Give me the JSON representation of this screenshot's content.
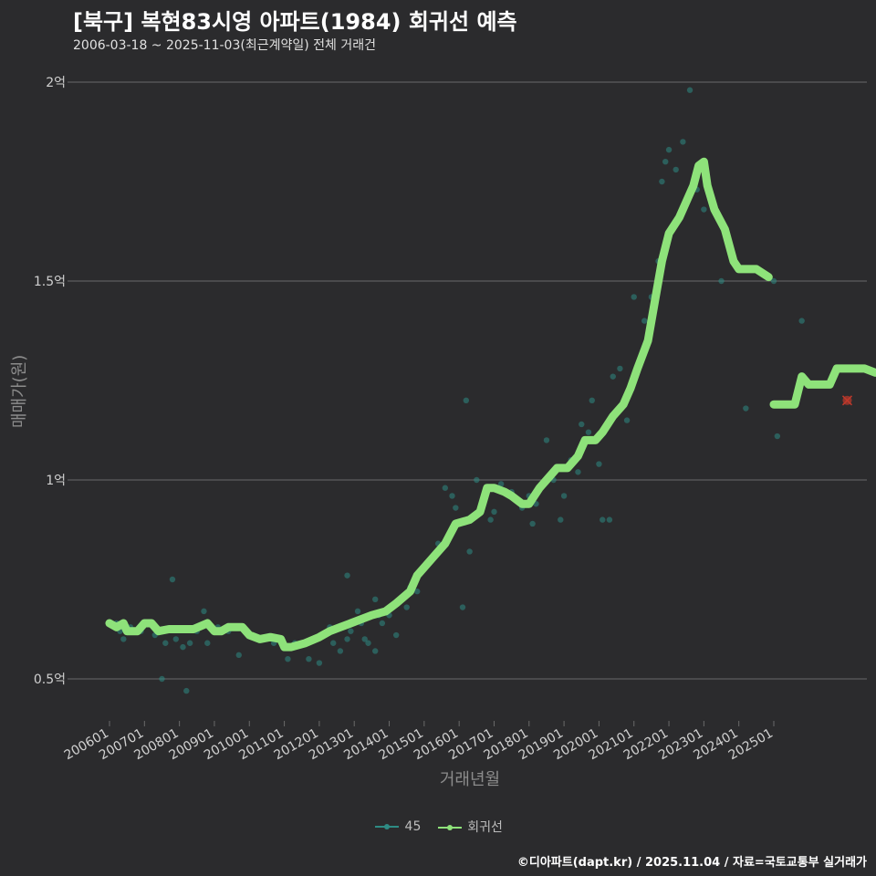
{
  "header": {
    "title": "[북구] 복현83시영 아파트(1984) 회귀선 예측",
    "subtitle": "2006-03-18 ~ 2025-11-03(최근계약일) 전체 거래건"
  },
  "footer": {
    "credit": "©디아파트(dapt.kr) / 2025.11.04 / 자료=국토교통부 실거래가"
  },
  "legend": {
    "items": [
      "45",
      "회귀선"
    ]
  },
  "colors": {
    "background": "#2b2b2d",
    "points": "#2e8b84",
    "regression": "#8ee27a",
    "highlight": "#c0392b",
    "grid": "#6a6a6a"
  },
  "chart_data": {
    "type": "scatter",
    "title": "[북구] 복현83시영 아파트(1984) 회귀선 예측",
    "xlabel": "거래년월",
    "ylabel": "매매가(원)",
    "ylim": [
      0.4,
      2.05
    ],
    "y_ticks": [
      0.5,
      1.0,
      1.5,
      2.0
    ],
    "y_tick_labels": [
      "0.5억",
      "1억",
      "1.5억",
      "2억"
    ],
    "x_range": [
      2005.7,
      2027.0
    ],
    "x_ticks": [
      2006,
      2007,
      2008,
      2009,
      2010,
      2011,
      2012,
      2013,
      2014,
      2015,
      2016,
      2017,
      2018,
      2019,
      2020,
      2021,
      2022,
      2023,
      2024,
      2025
    ],
    "x_tick_labels": [
      "200601",
      "200701",
      "200801",
      "200901",
      "201001",
      "201101",
      "201201",
      "201301",
      "201401",
      "201501",
      "201601",
      "201701",
      "201801",
      "201901",
      "202001",
      "202101",
      "202201",
      "202301",
      "202401",
      "202501"
    ],
    "series": [
      {
        "name": "45",
        "type": "scatter",
        "points": [
          [
            2006.2,
            0.64
          ],
          [
            2006.3,
            0.62
          ],
          [
            2006.4,
            0.6
          ],
          [
            2006.6,
            0.63
          ],
          [
            2006.9,
            0.62
          ],
          [
            2007.1,
            0.64
          ],
          [
            2007.3,
            0.61
          ],
          [
            2007.5,
            0.5
          ],
          [
            2007.6,
            0.59
          ],
          [
            2007.8,
            0.75
          ],
          [
            2007.9,
            0.6
          ],
          [
            2008.1,
            0.58
          ],
          [
            2008.2,
            0.47
          ],
          [
            2008.3,
            0.59
          ],
          [
            2008.5,
            0.62
          ],
          [
            2008.7,
            0.67
          ],
          [
            2008.8,
            0.59
          ],
          [
            2009.1,
            0.63
          ],
          [
            2009.4,
            0.62
          ],
          [
            2009.7,
            0.56
          ],
          [
            2010.0,
            0.61
          ],
          [
            2010.4,
            0.6
          ],
          [
            2010.7,
            0.59
          ],
          [
            2011.1,
            0.55
          ],
          [
            2011.3,
            0.59
          ],
          [
            2011.7,
            0.55
          ],
          [
            2012.0,
            0.54
          ],
          [
            2012.1,
            0.61
          ],
          [
            2012.3,
            0.63
          ],
          [
            2012.4,
            0.59
          ],
          [
            2012.6,
            0.57
          ],
          [
            2012.8,
            0.6
          ],
          [
            2012.9,
            0.62
          ],
          [
            2013.1,
            0.67
          ],
          [
            2013.2,
            0.64
          ],
          [
            2013.3,
            0.6
          ],
          [
            2013.4,
            0.59
          ],
          [
            2013.6,
            0.57
          ],
          [
            2013.6,
            0.7
          ],
          [
            2013.7,
            0.66
          ],
          [
            2013.8,
            0.64
          ],
          [
            2014.0,
            0.66
          ],
          [
            2014.2,
            0.61
          ],
          [
            2014.5,
            0.68
          ],
          [
            2014.6,
            0.73
          ],
          [
            2014.8,
            0.72
          ],
          [
            2015.0,
            0.78
          ],
          [
            2015.2,
            0.8
          ],
          [
            2015.4,
            0.84
          ],
          [
            2015.6,
            0.98
          ],
          [
            2015.8,
            0.96
          ],
          [
            2015.9,
            0.93
          ],
          [
            2016.1,
            0.68
          ],
          [
            2016.3,
            0.82
          ],
          [
            2016.5,
            1.0
          ],
          [
            2016.7,
            0.94
          ],
          [
            2016.9,
            0.9
          ],
          [
            2017.0,
            0.92
          ],
          [
            2017.2,
            0.99
          ],
          [
            2017.5,
            0.97
          ],
          [
            2017.8,
            0.93
          ],
          [
            2018.0,
            0.96
          ],
          [
            2018.1,
            0.89
          ],
          [
            2018.2,
            0.94
          ],
          [
            2018.5,
            1.1
          ],
          [
            2018.7,
            1.0
          ],
          [
            2018.9,
            0.9
          ],
          [
            2019.0,
            0.96
          ],
          [
            2019.2,
            1.05
          ],
          [
            2019.4,
            1.02
          ],
          [
            2019.5,
            1.14
          ],
          [
            2019.7,
            1.12
          ],
          [
            2019.8,
            1.2
          ],
          [
            2020.0,
            1.04
          ],
          [
            2020.1,
            0.9
          ],
          [
            2020.3,
            0.9
          ],
          [
            2020.4,
            1.26
          ],
          [
            2020.6,
            1.28
          ],
          [
            2020.8,
            1.15
          ],
          [
            2021.0,
            1.46
          ],
          [
            2021.3,
            1.4
          ],
          [
            2021.5,
            1.46
          ],
          [
            2021.7,
            1.55
          ],
          [
            2021.8,
            1.75
          ],
          [
            2021.9,
            1.8
          ],
          [
            2022.0,
            1.83
          ],
          [
            2022.2,
            1.78
          ],
          [
            2022.4,
            1.85
          ],
          [
            2022.6,
            1.98
          ],
          [
            2022.8,
            1.73
          ],
          [
            2023.0,
            1.68
          ],
          [
            2023.5,
            1.5
          ],
          [
            2024.2,
            1.18
          ],
          [
            2025.0,
            1.5
          ],
          [
            2025.1,
            1.11
          ],
          [
            2025.8,
            1.4
          ],
          [
            2016.2,
            1.2
          ],
          [
            2012.8,
            0.76
          ]
        ]
      },
      {
        "name": "회귀선",
        "type": "line",
        "segments": [
          [
            [
              2006.0,
              0.64
            ],
            [
              2006.2,
              0.63
            ],
            [
              2006.4,
              0.64
            ],
            [
              2006.5,
              0.62
            ],
            [
              2006.8,
              0.62
            ],
            [
              2007.0,
              0.64
            ],
            [
              2007.2,
              0.64
            ],
            [
              2007.4,
              0.62
            ],
            [
              2007.7,
              0.625
            ],
            [
              2008.0,
              0.625
            ],
            [
              2008.4,
              0.625
            ],
            [
              2008.8,
              0.64
            ],
            [
              2009.0,
              0.62
            ],
            [
              2009.2,
              0.62
            ],
            [
              2009.4,
              0.63
            ],
            [
              2009.8,
              0.63
            ],
            [
              2010.0,
              0.61
            ],
            [
              2010.3,
              0.6
            ],
            [
              2010.6,
              0.605
            ],
            [
              2010.9,
              0.6
            ],
            [
              2011.0,
              0.58
            ],
            [
              2011.2,
              0.58
            ],
            [
              2011.6,
              0.59
            ],
            [
              2012.0,
              0.605
            ],
            [
              2012.3,
              0.62
            ],
            [
              2012.6,
              0.63
            ],
            [
              2012.9,
              0.64
            ],
            [
              2013.2,
              0.65
            ],
            [
              2013.5,
              0.66
            ],
            [
              2013.9,
              0.67
            ],
            [
              2014.2,
              0.69
            ],
            [
              2014.6,
              0.72
            ],
            [
              2014.8,
              0.76
            ],
            [
              2015.0,
              0.78
            ],
            [
              2015.3,
              0.81
            ],
            [
              2015.6,
              0.84
            ],
            [
              2015.9,
              0.89
            ],
            [
              2016.3,
              0.9
            ],
            [
              2016.6,
              0.92
            ],
            [
              2016.8,
              0.98
            ],
            [
              2017.0,
              0.98
            ],
            [
              2017.3,
              0.97
            ],
            [
              2017.5,
              0.96
            ],
            [
              2017.8,
              0.94
            ],
            [
              2018.0,
              0.94
            ],
            [
              2018.3,
              0.98
            ],
            [
              2018.6,
              1.01
            ],
            [
              2018.8,
              1.03
            ],
            [
              2019.1,
              1.03
            ],
            [
              2019.4,
              1.06
            ],
            [
              2019.6,
              1.1
            ],
            [
              2019.9,
              1.1
            ],
            [
              2020.1,
              1.12
            ],
            [
              2020.4,
              1.16
            ],
            [
              2020.7,
              1.19
            ],
            [
              2020.9,
              1.23
            ],
            [
              2021.1,
              1.28
            ],
            [
              2021.4,
              1.35
            ],
            [
              2021.6,
              1.45
            ],
            [
              2021.8,
              1.55
            ],
            [
              2022.0,
              1.62
            ],
            [
              2022.3,
              1.66
            ],
            [
              2022.5,
              1.7
            ],
            [
              2022.7,
              1.74
            ],
            [
              2022.85,
              1.79
            ],
            [
              2023.0,
              1.8
            ],
            [
              2023.1,
              1.74
            ],
            [
              2023.3,
              1.68
            ],
            [
              2023.6,
              1.63
            ],
            [
              2023.85,
              1.55
            ],
            [
              2024.0,
              1.53
            ],
            [
              2024.5,
              1.53
            ],
            [
              2024.85,
              1.51
            ]
          ],
          [
            [
              2025.0,
              1.19
            ],
            [
              2025.4,
              1.19
            ],
            [
              2025.6,
              1.19
            ],
            [
              2025.8,
              1.26
            ],
            [
              2026.0,
              1.24
            ],
            [
              2026.3,
              1.24
            ],
            [
              2026.6,
              1.24
            ],
            [
              2026.8,
              1.28
            ],
            [
              2027.0,
              1.28
            ],
            [
              2027.3,
              1.28
            ],
            [
              2027.6,
              1.28
            ],
            [
              2027.9,
              1.27
            ]
          ]
        ]
      }
    ],
    "highlight": {
      "label": "x-marker",
      "x": 2027.1,
      "y": 1.2
    }
  }
}
